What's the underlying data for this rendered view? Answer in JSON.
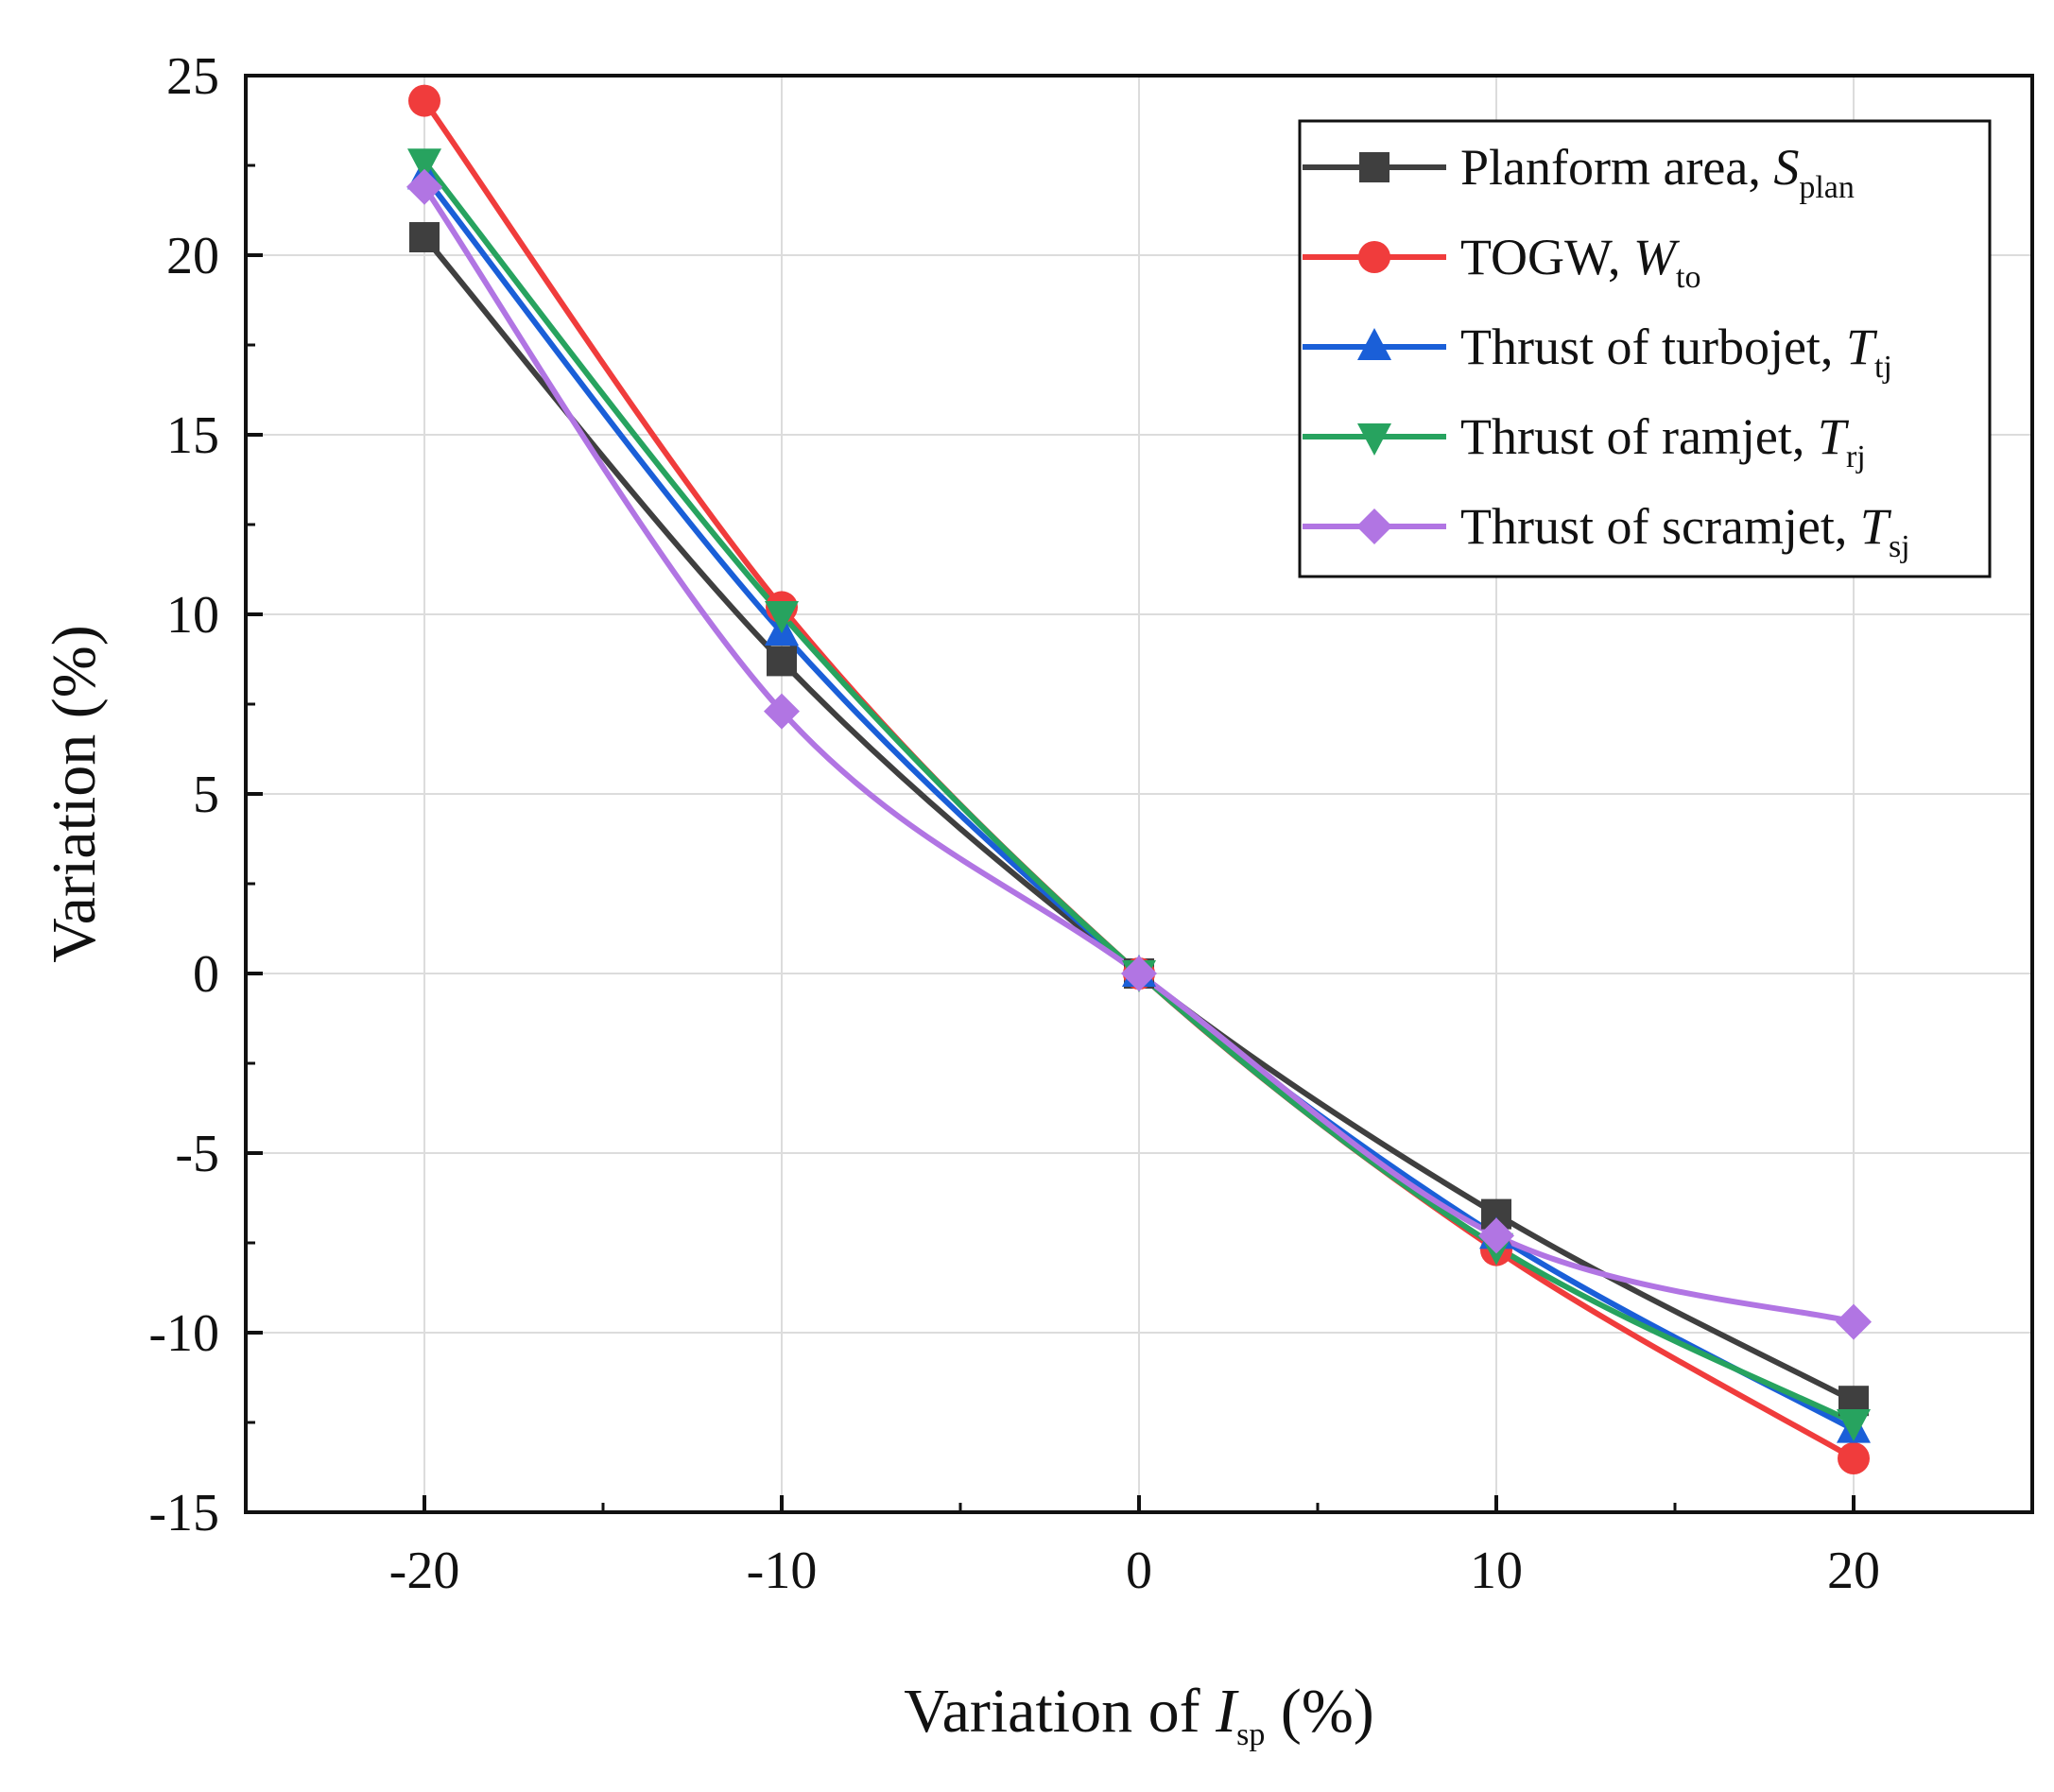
{
  "chart_data": {
    "type": "line",
    "x": [
      -20,
      -10,
      0,
      10,
      20
    ],
    "xlim": [
      -25,
      25
    ],
    "ylim": [
      -15,
      25
    ],
    "xticks": [
      -20,
      -10,
      0,
      10,
      20
    ],
    "yticks": [
      25,
      20,
      15,
      10,
      5,
      0,
      -5,
      -10,
      -15
    ],
    "xtick_labels": [
      "-20",
      "-10",
      "0",
      "10",
      "20"
    ],
    "ytick_labels": [
      "25",
      "20",
      "15",
      "10",
      "5",
      "0",
      "-5",
      "-10",
      "-15"
    ],
    "grid": true,
    "legend_position": "top-right",
    "xlabel": {
      "main": "Variation of ",
      "symbol": "I",
      "sub": "sp",
      "tail": " (%)"
    },
    "ylabel": "Variation (%)",
    "series": [
      {
        "name": "Planform area, ",
        "symbol": "S",
        "sub": "plan",
        "color": "#3f3f3f",
        "marker": "square",
        "values": [
          20.5,
          8.7,
          0,
          -6.7,
          -11.9
        ]
      },
      {
        "name": "TOGW, ",
        "symbol": "W",
        "sub": "to",
        "color": "#f03c3c",
        "marker": "circle",
        "values": [
          24.3,
          10.2,
          0,
          -7.7,
          -13.5
        ]
      },
      {
        "name": "Thrust of turbojet, ",
        "symbol": "T",
        "sub": "tj",
        "color": "#1a5fd8",
        "marker": "triangle-up",
        "values": [
          22.2,
          9.5,
          0,
          -7.3,
          -12.7
        ]
      },
      {
        "name": "Thrust of ramjet, ",
        "symbol": "T",
        "sub": "rj",
        "color": "#27a35f",
        "marker": "triangle-down",
        "values": [
          22.6,
          10.0,
          0,
          -7.6,
          -12.5
        ]
      },
      {
        "name": "Thrust of scramjet, ",
        "symbol": "T",
        "sub": "sj",
        "color": "#b175e3",
        "marker": "diamond",
        "values": [
          21.9,
          7.3,
          0,
          -7.3,
          -9.7
        ]
      }
    ]
  }
}
